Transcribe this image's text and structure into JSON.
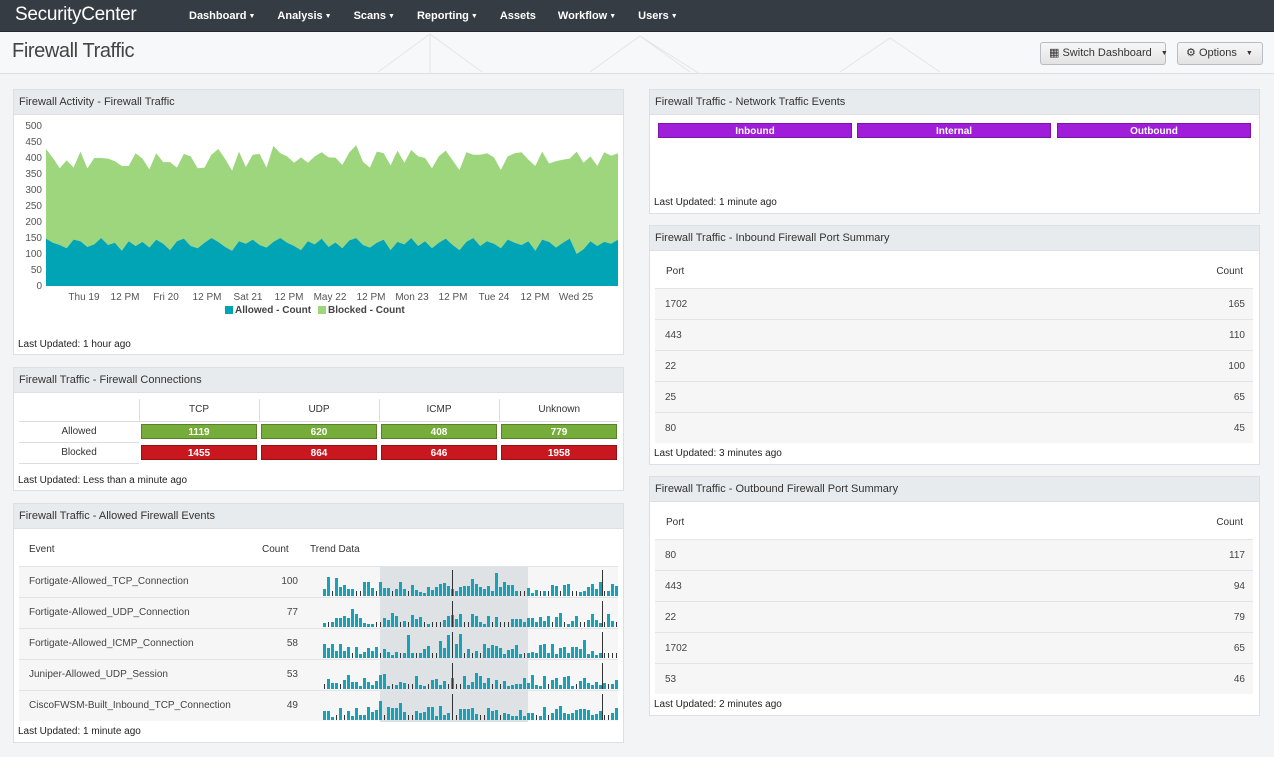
{
  "app": {
    "logo": "SecurityCenter",
    "nav": [
      "Dashboard",
      "Analysis",
      "Scans",
      "Reporting",
      "Assets",
      "Workflow",
      "Users"
    ]
  },
  "page": {
    "title": "Firewall Traffic",
    "switch_label": "Switch Dashboard",
    "options_label": "Options"
  },
  "activity": {
    "title": "Firewall Activity - Firewall Traffic",
    "updated": "Last Updated: 1 hour ago"
  },
  "connections": {
    "title": "Firewall Traffic - Firewall Connections",
    "columns": [
      "TCP",
      "UDP",
      "ICMP",
      "Unknown"
    ],
    "rows": [
      {
        "label": "Allowed",
        "values": [
          "1119",
          "620",
          "408",
          "779"
        ]
      },
      {
        "label": "Blocked",
        "values": [
          "1455",
          "864",
          "646",
          "1958"
        ]
      }
    ],
    "updated": "Last Updated: Less than a minute ago"
  },
  "allowed_events": {
    "title": "Firewall Traffic - Allowed Firewall Events",
    "headers": {
      "event": "Event",
      "count": "Count",
      "trend": "Trend Data"
    },
    "rows": [
      {
        "event": "Fortigate-Allowed_TCP_Connection",
        "count": "100"
      },
      {
        "event": "Fortigate-Allowed_UDP_Connection",
        "count": "77"
      },
      {
        "event": "Fortigate-Allowed_ICMP_Connection",
        "count": "58"
      },
      {
        "event": "Juniper-Allowed_UDP_Session",
        "count": "53"
      },
      {
        "event": "CiscoFWSM-Built_Inbound_TCP_Connection",
        "count": "49"
      }
    ],
    "updated": "Last Updated: 1 minute ago"
  },
  "network_events": {
    "title": "Firewall Traffic - Network Traffic Events",
    "buttons": [
      "Inbound",
      "Internal",
      "Outbound"
    ],
    "color": "#a01ed9",
    "updated": "Last Updated: 1 minute ago"
  },
  "inbound_ports": {
    "title": "Firewall Traffic - Inbound Firewall Port Summary",
    "headers": {
      "port": "Port",
      "count": "Count"
    },
    "rows": [
      {
        "port": "1702",
        "count": "165"
      },
      {
        "port": "443",
        "count": "110"
      },
      {
        "port": "22",
        "count": "100"
      },
      {
        "port": "25",
        "count": "65"
      },
      {
        "port": "80",
        "count": "45"
      }
    ],
    "updated": "Last Updated: 3 minutes ago"
  },
  "outbound_ports": {
    "title": "Firewall Traffic - Outbound Firewall Port Summary",
    "headers": {
      "port": "Port",
      "count": "Count"
    },
    "rows": [
      {
        "port": "80",
        "count": "117"
      },
      {
        "port": "443",
        "count": "94"
      },
      {
        "port": "22",
        "count": "79"
      },
      {
        "port": "1702",
        "count": "65"
      },
      {
        "port": "53",
        "count": "46"
      }
    ],
    "updated": "Last Updated: 2 minutes ago"
  },
  "colors": {
    "allowed": "#00a4b4",
    "blocked": "#9dd67c",
    "green_cell": "#76ad3a",
    "red_cell": "#c8171e",
    "trend_bar": "#17a2b8"
  },
  "chart_data": {
    "type": "area",
    "stacked": true,
    "title": "",
    "xlabel": "",
    "ylabel": "",
    "ylim": [
      0,
      500
    ],
    "yticks": [
      0,
      50,
      100,
      150,
      200,
      250,
      300,
      350,
      400,
      450,
      500
    ],
    "xtick_labels": [
      "Thu 19",
      "12 PM",
      "Fri 20",
      "12 PM",
      "Sat 21",
      "12 PM",
      "May 22",
      "12 PM",
      "Mon 23",
      "12 PM",
      "Tue 24",
      "12 PM",
      "Wed 25"
    ],
    "legend": [
      "Allowed - Count",
      "Blocked - Count"
    ],
    "series": [
      {
        "name": "Allowed - Count",
        "values": [
          148,
          135,
          128,
          118,
          145,
          140,
          122,
          130,
          150,
          128,
          135,
          110,
          140,
          125,
          138,
          120,
          145,
          132,
          112,
          140,
          148,
          125,
          118,
          135,
          150,
          138,
          122,
          110,
          140,
          132,
          145,
          128,
          120,
          138,
          150,
          135,
          125,
          112,
          140,
          130,
          148,
          122,
          136,
          118,
          142,
          150,
          128,
          120,
          135,
          145,
          112,
          138,
          130,
          150,
          125,
          140,
          118,
          135,
          148,
          128,
          112,
          138,
          150,
          125,
          140,
          132,
          118,
          145,
          135,
          128,
          140,
          110,
          145,
          138,
          120,
          135,
          148,
          100,
          115,
          140,
          125,
          138,
          132,
          145
        ]
      },
      {
        "name": "Blocked - Count",
        "values": [
          280,
          265,
          240,
          275,
          225,
          280,
          245,
          270,
          250,
          270,
          255,
          265,
          235,
          290,
          260,
          245,
          270,
          255,
          275,
          230,
          265,
          280,
          250,
          235,
          260,
          290,
          275,
          250,
          280,
          240,
          265,
          285,
          250,
          300,
          265,
          270,
          260,
          290,
          245,
          275,
          270,
          280,
          265,
          260,
          275,
          290,
          260,
          250,
          285,
          270,
          265,
          285,
          255,
          275,
          280,
          260,
          250,
          270,
          275,
          265,
          250,
          280,
          260,
          285,
          275,
          270,
          245,
          260,
          280,
          290,
          255,
          265,
          275,
          245,
          270,
          260,
          250,
          320,
          270,
          265,
          250,
          280,
          275,
          270
        ]
      }
    ]
  }
}
